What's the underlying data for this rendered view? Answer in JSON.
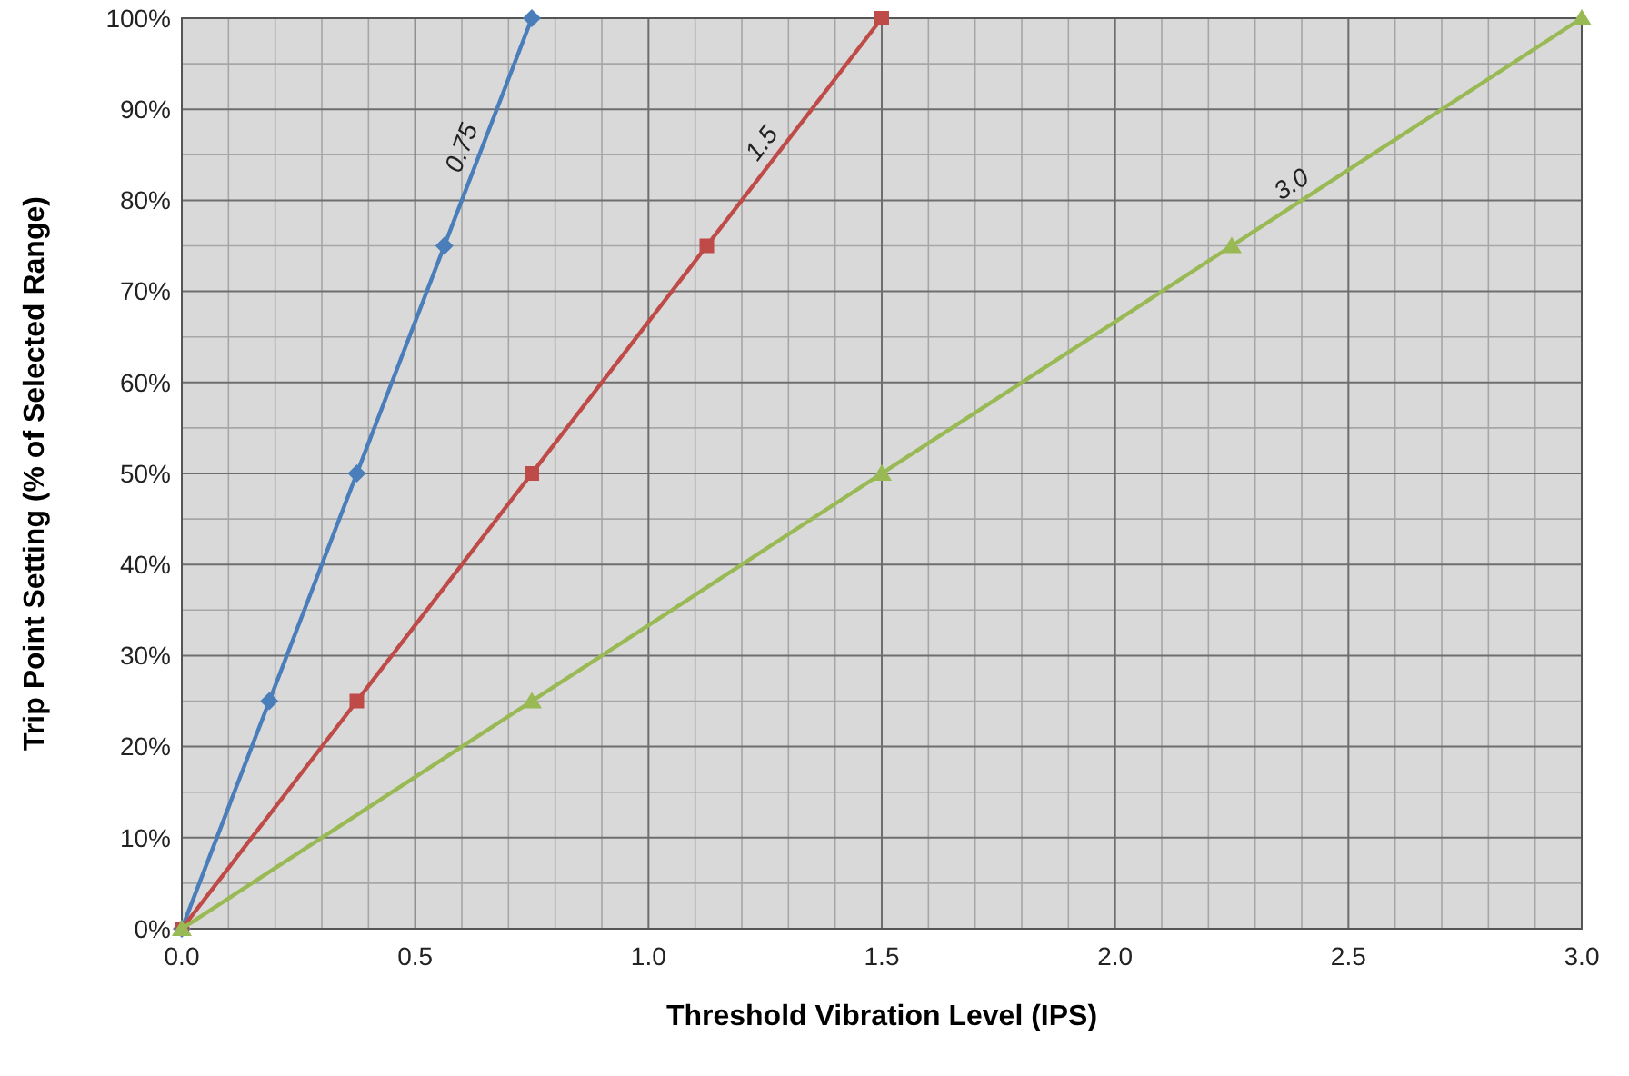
{
  "chart_data": {
    "type": "line",
    "xlabel": "Threshold Vibration Level (IPS)",
    "ylabel": "Trip Point Setting (% of Selected Range)",
    "xlim": [
      0,
      3
    ],
    "xticks": [
      {
        "value": 0,
        "label": "0.0"
      },
      0.5,
      {
        "value": 1,
        "label": "1.0"
      },
      1.5,
      {
        "value": 2,
        "label": "2.0"
      },
      2.5,
      {
        "value": 3,
        "label": "3.0"
      }
    ],
    "ylim": [
      0,
      100
    ],
    "yticks": [
      {
        "value": 0,
        "label": "0%"
      },
      {
        "value": 10,
        "label": "10%"
      },
      {
        "value": 20,
        "label": "20%"
      },
      {
        "value": 30,
        "label": "30%"
      },
      {
        "value": 40,
        "label": "40%"
      },
      {
        "value": 50,
        "label": "50%"
      },
      {
        "value": 60,
        "label": "60%"
      },
      {
        "value": 70,
        "label": "70%"
      },
      {
        "value": 80,
        "label": "80%"
      },
      {
        "value": 90,
        "label": "90%"
      },
      {
        "value": 100,
        "label": "100%"
      }
    ],
    "grid": true,
    "line_style": "solid",
    "series": [
      {
        "color": "#4a7ebb",
        "marker": "diamond",
        "x": [
          0,
          0.1875,
          0.375,
          0.5625,
          0.75
        ],
        "values": [
          0,
          25,
          50,
          75,
          100
        ]
      },
      {
        "color": "#be4b48",
        "marker": "square",
        "x": [
          0,
          0.375,
          0.75,
          1.125,
          1.5
        ],
        "values": [
          0,
          25,
          50,
          75,
          100
        ]
      },
      {
        "color": "#98b954",
        "marker": "triangle",
        "x": [
          0,
          0.75,
          1.5,
          2.25,
          3
        ],
        "values": [
          0,
          25,
          50,
          75,
          100
        ]
      }
    ],
    "annotations": [
      {
        "text": "0.75",
        "x": 0.6375,
        "y": 85
      },
      {
        "text": "1.5",
        "x": 1.275,
        "y": 85
      },
      {
        "text": "3.0",
        "x": 2.4,
        "y": 80
      }
    ]
  }
}
